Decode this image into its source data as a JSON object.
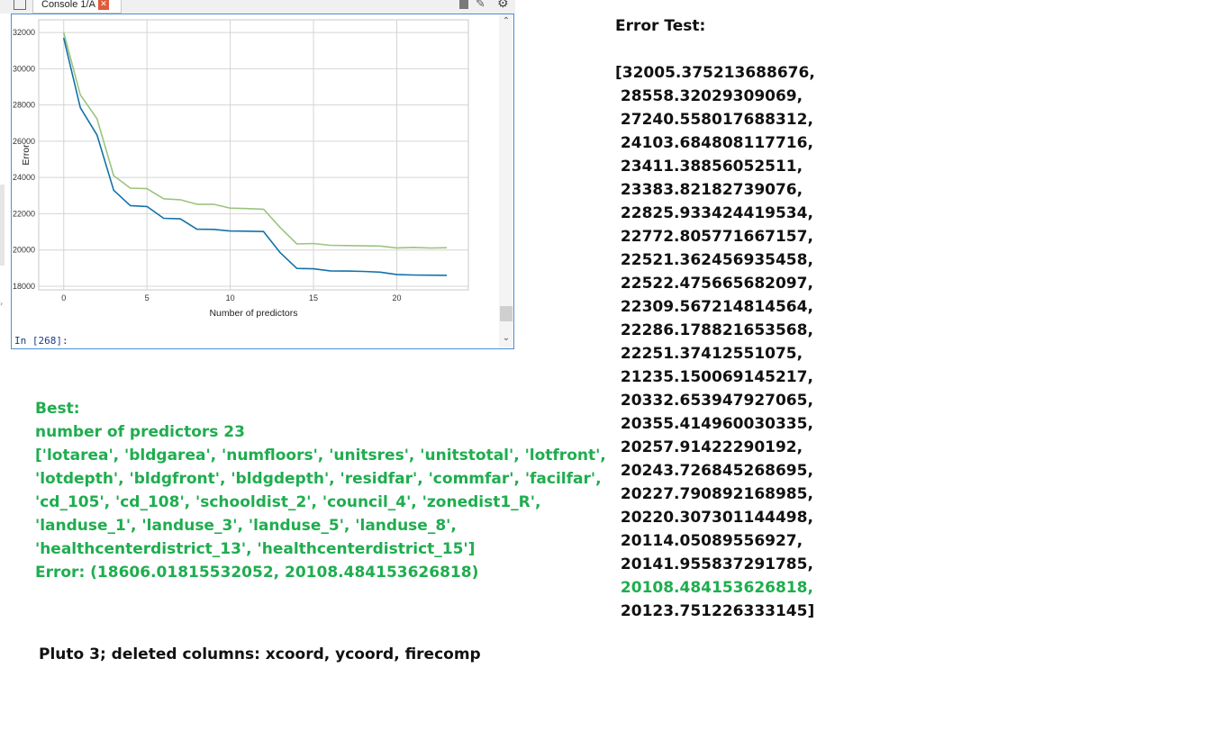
{
  "console": {
    "tab_label": "Console 1/A",
    "close_glyph": "✕",
    "prompt": "In [268]:",
    "icons": [
      "tab-icon",
      "close-icon",
      "stop-icon",
      "pencil-icon",
      "gear-icon",
      "chevron-up-icon",
      "chevron-down-icon"
    ]
  },
  "chart_data": {
    "type": "line",
    "xlabel": "Number of predictors",
    "ylabel": "Error",
    "xlim": [
      -1.5,
      24.3
    ],
    "ylim": [
      17800,
      32700
    ],
    "xticks": [
      0,
      5,
      10,
      15,
      20
    ],
    "yticks": [
      18000,
      20000,
      22000,
      24000,
      26000,
      28000,
      30000,
      32000
    ],
    "grid": true,
    "x": [
      0,
      1,
      2,
      3,
      4,
      5,
      6,
      7,
      8,
      9,
      10,
      11,
      12,
      13,
      14,
      15,
      16,
      17,
      18,
      19,
      20,
      21,
      22,
      23
    ],
    "series": [
      {
        "color": "#1272a8",
        "values": [
          31700,
          27850,
          26350,
          23300,
          22450,
          22400,
          21750,
          21720,
          21150,
          21140,
          21050,
          21040,
          21020,
          19850,
          18980,
          18960,
          18850,
          18840,
          18820,
          18780,
          18650,
          18620,
          18610,
          18606
        ]
      },
      {
        "color": "#9bc47f",
        "values": [
          32005.375213688676,
          28558.32029309069,
          27240.558017688312,
          24103.684808117716,
          23411.38856052511,
          23383.82182739076,
          22825.933424419534,
          22772.805771667157,
          22521.362456935458,
          22522.475665682097,
          22309.567214814564,
          22286.178821653568,
          22251.37412551075,
          21235.150069145217,
          20332.653947927065,
          20355.414960030335,
          20257.91422290192,
          20243.726845268695,
          20227.790892168985,
          20220.307301144498,
          20114.05089556927,
          20141.955837291785,
          20108.484153626818,
          20123.751226333145
        ]
      }
    ]
  },
  "best": {
    "lines": [
      "Best:",
      "number of predictors 23",
      "['lotarea', 'bldgarea', 'numfloors', 'unitsres', 'unitstotal', 'lotfront',",
      "'lotdepth', 'bldgfront', 'bldgdepth', 'residfar', 'commfar', 'facilfar',",
      "'cd_105', 'cd_108', 'schooldist_2', 'council_4', 'zonedist1_R',",
      "'landuse_1', 'landuse_3', 'landuse_5', 'landuse_8',",
      "'healthcenterdistrict_13', 'healthcenterdistrict_15']",
      "Error: (18606.01815532052, 20108.484153626818)"
    ]
  },
  "note": "Pluto 3; deleted columns: xcoord, ycoord, firecomp",
  "error_test": {
    "title": "Error Test:",
    "highlight_color": "#1fad4f",
    "highlight_index": 22,
    "lines": [
      "[32005.375213688676,",
      " 28558.32029309069,",
      " 27240.558017688312,",
      " 24103.684808117716,",
      " 23411.38856052511,",
      " 23383.82182739076,",
      " 22825.933424419534,",
      " 22772.805771667157,",
      " 22521.362456935458,",
      " 22522.475665682097,",
      " 22309.567214814564,",
      " 22286.178821653568,",
      " 22251.37412551075,",
      " 21235.150069145217,",
      " 20332.653947927065,",
      " 20355.414960030335,",
      " 20257.91422290192,",
      " 20243.726845268695,",
      " 20227.790892168985,",
      " 20220.307301144498,",
      " 20114.05089556927,",
      " 20141.955837291785,",
      " 20108.484153626818,",
      " 20123.751226333145]"
    ]
  }
}
